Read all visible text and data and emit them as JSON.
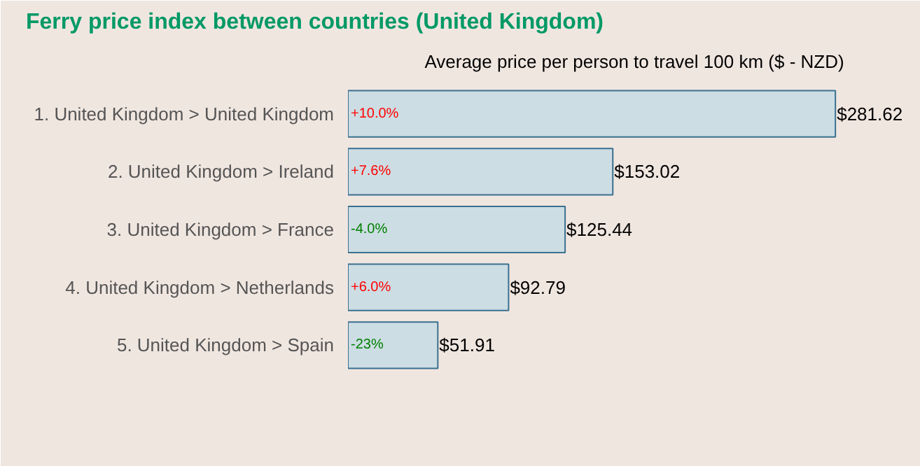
{
  "chart_data": {
    "type": "bar",
    "orientation": "horizontal",
    "title": "Ferry price index between countries (United Kingdom)",
    "subtitle": "Average price per person to travel 100 km ($ - NZD)",
    "categories": [
      "1. United Kingdom > United Kingdom",
      "2. United Kingdom > Ireland",
      "3. United Kingdom > France",
      "4. United Kingdom > Netherlands",
      "5. United Kingdom > Spain"
    ],
    "values": [
      281.62,
      153.02,
      125.44,
      92.79,
      51.91
    ],
    "value_labels": [
      "$281.62",
      "$153.02",
      "$125.44",
      "$92.79",
      "$51.91"
    ],
    "color": "#ccdde3",
    "annotations": [
      {
        "text": "+10.0%",
        "y": "1. United Kingdom > United Kingdom"
      },
      {
        "text": "+7.6%",
        "y": "2. United Kingdom > Ireland"
      },
      {
        "text": "-4.0%",
        "y": "3. United Kingdom > France"
      },
      {
        "text": "+6.0%",
        "y": "4. United Kingdom > Netherlands"
      },
      {
        "text": "-23%",
        "y": "5. United Kingdom > Spain"
      }
    ],
    "grid": false
  }
}
